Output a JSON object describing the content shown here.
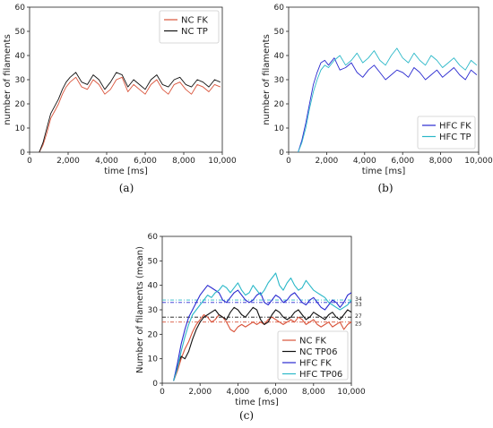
{
  "chart_data": [
    {
      "type": "line",
      "caption": "(a)",
      "xlabel": "time [ms]",
      "ylabel": "number of filaments",
      "xlim": [
        0,
        10000
      ],
      "ylim": [
        0,
        60
      ],
      "xticks": [
        0,
        2000,
        4000,
        6000,
        8000,
        10000
      ],
      "xtick_labels": [
        "0",
        "2,000",
        "4,000",
        "6,000",
        "8,000",
        "10,000"
      ],
      "yticks": [
        0,
        10,
        20,
        30,
        40,
        50,
        60
      ],
      "legend_position": "top-right",
      "grid": false,
      "x": [
        500,
        700,
        900,
        1100,
        1300,
        1500,
        1700,
        1900,
        2100,
        2400,
        2700,
        3000,
        3300,
        3600,
        3900,
        4200,
        4500,
        4800,
        5100,
        5400,
        5700,
        6000,
        6300,
        6600,
        6900,
        7200,
        7500,
        7800,
        8100,
        8400,
        8700,
        9000,
        9300,
        9600,
        9900
      ],
      "series": [
        {
          "name": "NC FK",
          "color": "#d9533a",
          "values": [
            0,
            3,
            8,
            14,
            17,
            20,
            24,
            27,
            29,
            31,
            27,
            26,
            30,
            28,
            24,
            26,
            30,
            31,
            25,
            28,
            26,
            24,
            28,
            30,
            26,
            24,
            28,
            29,
            26,
            24,
            28,
            27,
            25,
            28,
            27
          ]
        },
        {
          "name": "NC TP",
          "color": "#111111",
          "values": [
            0,
            4,
            10,
            16,
            19,
            22,
            26,
            29,
            31,
            33,
            29,
            28,
            32,
            30,
            26,
            29,
            33,
            32,
            27,
            30,
            28,
            26,
            30,
            32,
            28,
            27,
            30,
            31,
            28,
            27,
            30,
            29,
            27,
            30,
            29
          ]
        }
      ]
    },
    {
      "type": "line",
      "caption": "(b)",
      "xlabel": "time [ms]",
      "ylabel": "number of filaments",
      "xlim": [
        0,
        10000
      ],
      "ylim": [
        0,
        60
      ],
      "xticks": [
        0,
        2000,
        4000,
        6000,
        8000,
        10000
      ],
      "xtick_labels": [
        "0",
        "2,000",
        "4,000",
        "6,000",
        "8,000",
        "10,000"
      ],
      "yticks": [
        0,
        10,
        20,
        30,
        40,
        50,
        60
      ],
      "legend_position": "bottom-right",
      "grid": false,
      "x": [
        500,
        700,
        900,
        1100,
        1300,
        1500,
        1700,
        1900,
        2100,
        2400,
        2700,
        3000,
        3300,
        3600,
        3900,
        4200,
        4500,
        4800,
        5100,
        5400,
        5700,
        6000,
        6300,
        6600,
        6900,
        7200,
        7500,
        7800,
        8100,
        8400,
        8700,
        9000,
        9300,
        9600,
        9900
      ],
      "series": [
        {
          "name": "HFC FK",
          "color": "#2a2ad0",
          "values": [
            0,
            5,
            12,
            20,
            28,
            33,
            37,
            38,
            36,
            39,
            34,
            35,
            37,
            33,
            31,
            34,
            36,
            33,
            30,
            32,
            34,
            33,
            31,
            35,
            33,
            30,
            32,
            34,
            31,
            33,
            35,
            32,
            30,
            34,
            32
          ]
        },
        {
          "name": "HFC TP",
          "color": "#2bb8c8",
          "values": [
            0,
            4,
            10,
            18,
            25,
            30,
            34,
            36,
            35,
            38,
            40,
            36,
            38,
            41,
            37,
            39,
            42,
            38,
            36,
            40,
            43,
            39,
            37,
            41,
            38,
            36,
            40,
            38,
            35,
            37,
            39,
            36,
            34,
            38,
            36
          ]
        }
      ]
    },
    {
      "type": "line",
      "caption": "(c)",
      "xlabel": "time [ms]",
      "ylabel": "Number of filaments (mean)",
      "xlim": [
        0,
        10000
      ],
      "ylim": [
        0,
        60
      ],
      "xticks": [
        0,
        2000,
        4000,
        6000,
        8000,
        10000
      ],
      "xtick_labels": [
        "0",
        "2,000",
        "4,000",
        "6,000",
        "8,000",
        "10,000"
      ],
      "yticks": [
        0,
        10,
        20,
        30,
        40,
        50,
        60
      ],
      "legend_position": "bottom-right",
      "grid": false,
      "mean_lines": [
        {
          "value": 25,
          "color": "#d9533a",
          "label": "25"
        },
        {
          "value": 27,
          "color": "#111111",
          "label": "27"
        },
        {
          "value": 33,
          "color": "#2a2ad0",
          "label": "33"
        },
        {
          "value": 34,
          "color": "#2bb8c8",
          "label": "34"
        }
      ],
      "x": [
        600,
        800,
        1000,
        1200,
        1400,
        1600,
        1800,
        2000,
        2200,
        2400,
        2600,
        2800,
        3000,
        3200,
        3400,
        3600,
        3800,
        4000,
        4200,
        4400,
        4600,
        4800,
        5000,
        5200,
        5400,
        5600,
        5800,
        6000,
        6200,
        6400,
        6600,
        6800,
        7000,
        7200,
        7400,
        7600,
        7800,
        8000,
        8200,
        8400,
        8600,
        8800,
        9000,
        9200,
        9400,
        9600,
        9800,
        10000
      ],
      "series": [
        {
          "name": "NC FK",
          "color": "#d9533a",
          "values": [
            1,
            5,
            10,
            14,
            17,
            21,
            24,
            26,
            28,
            27,
            25,
            26,
            28,
            27,
            25,
            22,
            21,
            23,
            24,
            23,
            24,
            25,
            24,
            25,
            24,
            26,
            27,
            26,
            25,
            24,
            25,
            26,
            25,
            27,
            26,
            24,
            25,
            26,
            24,
            23,
            24,
            25,
            23,
            24,
            25,
            22,
            24,
            25
          ]
        },
        {
          "name": "NC TP06",
          "color": "#111111",
          "values": [
            1,
            7,
            11,
            10,
            13,
            18,
            22,
            25,
            27,
            28,
            29,
            30,
            28,
            27,
            26,
            29,
            31,
            30,
            28,
            27,
            29,
            31,
            30,
            26,
            24,
            25,
            28,
            30,
            29,
            27,
            26,
            27,
            29,
            30,
            28,
            26,
            27,
            29,
            28,
            27,
            26,
            28,
            29,
            27,
            26,
            28,
            30,
            29
          ]
        },
        {
          "name": "HFC FK",
          "color": "#2a2ad0",
          "values": [
            1,
            8,
            16,
            22,
            27,
            30,
            33,
            36,
            38,
            40,
            39,
            38,
            37,
            34,
            33,
            35,
            37,
            38,
            36,
            34,
            33,
            34,
            36,
            37,
            33,
            32,
            34,
            36,
            35,
            33,
            34,
            36,
            37,
            35,
            33,
            32,
            34,
            35,
            33,
            31,
            30,
            32,
            34,
            33,
            31,
            33,
            36,
            37
          ]
        },
        {
          "name": "HFC TP06",
          "color": "#2bb8c8",
          "values": [
            1,
            6,
            13,
            19,
            24,
            28,
            30,
            32,
            34,
            36,
            35,
            37,
            38,
            40,
            39,
            37,
            39,
            41,
            38,
            36,
            37,
            40,
            38,
            36,
            38,
            41,
            43,
            45,
            40,
            38,
            41,
            43,
            40,
            38,
            39,
            42,
            40,
            38,
            37,
            36,
            35,
            33,
            32,
            31,
            30,
            31,
            32,
            34
          ]
        }
      ]
    }
  ]
}
